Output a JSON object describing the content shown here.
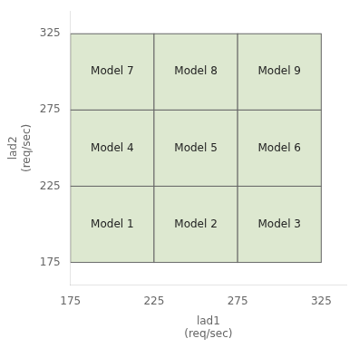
{
  "chart_data": {
    "type": "grid",
    "xlabel": [
      "lad1",
      "(req/sec)"
    ],
    "ylabel": [
      "lad2",
      "(req/sec)"
    ],
    "x": [
      200,
      250,
      300,
      200,
      250,
      300,
      200,
      250,
      300
    ],
    "values": [
      200,
      200,
      200,
      250,
      250,
      250,
      300,
      300,
      300
    ],
    "labels": [
      "Model 1",
      "Model 2",
      "Model 3",
      "Model 4",
      "Model 5",
      "Model 6",
      "Model 7",
      "Model 8",
      "Model 9"
    ],
    "cell_x_bounds": [
      175,
      225,
      275,
      325
    ],
    "cell_y_bounds": [
      175,
      225,
      275,
      325
    ],
    "color": "#dde8d0",
    "xlim": [
      175,
      340
    ],
    "ylim": [
      160,
      340
    ],
    "xticks": [
      175,
      225,
      275,
      325
    ],
    "yticks": [
      175,
      225,
      275,
      325
    ],
    "grid": false
  }
}
